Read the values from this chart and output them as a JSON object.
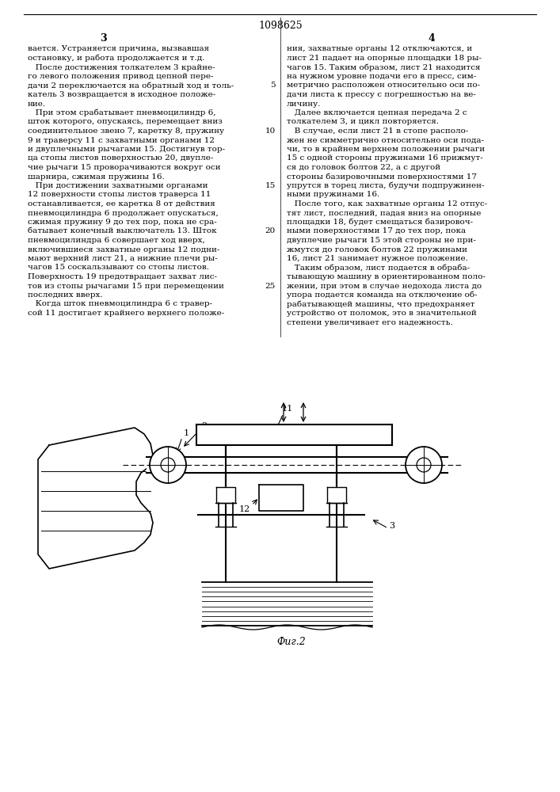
{
  "page_width": 7.07,
  "page_height": 10.0,
  "background_color": "#ffffff",
  "patent_number": "1098625",
  "col_left_number": "3",
  "col_right_number": "4",
  "fig_caption": "Фиг.2",
  "left_texts": [
    "вается. Устраняется причина, вызвавшая",
    "остановку, и работа продолжается и т.д.",
    "   После достижения толкателем 3 крайне-",
    "го левого положения привод цепной пере-",
    "дачи 2 переключается на обратный ход и толь-",
    "катель 3 возвращается в исходное положе-",
    "ние.",
    "   При этом срабатывает пневмоцилиндр 6,",
    "шток которого, опускаясь, перемещает вниз",
    "соединительное звено 7, каретку 8, пружину",
    "9 и траверсу 11 с захватными органами 12",
    "и двуплечными рычагами 15. Достигнув тор-",
    "ца стопы листов поверхностью 20, двупле-",
    "чие рычаги 15 проворачиваются вокруг оси",
    "шарнира, сжимая пружины 16.",
    "   При достижении захватными органами",
    "12 поверхности стопы листов траверса 11",
    "останавливается, ее каретка 8 от действия",
    "пневмоцилиндра 6 продолжает опускаться,",
    "сжимая пружину 9 до тех пор, пока не сра-",
    "батывает конечный выключатель 13. Шток",
    "пневмоцилиндра 6 совершает ход вверх,",
    "включившиеся захватные органы 12 подни-",
    "мают верхний лист 21, а нижние плечи ры-",
    "чагов 15 соскальзывают со стопы листов.",
    "Поверхность 19 предотвращает захват лис-",
    "тов из стопы рычагами 15 при перемещении",
    "последних вверх.",
    "   Когда шток пневмоцилиндра 6 с травер-",
    "сой 11 достигает крайнего верхнего положе-"
  ],
  "right_texts": [
    "ния, захватные органы 12 отключаются, и",
    "лист 21 падает на опорные площадки 18 ры-",
    "чагов 15. Таким образом, лист 21 находится",
    "на нужном уровне подачи его в пресс, сим-",
    "метрично расположен относительно оси по-",
    "дачи листа к прессу с погрешностью на ве-",
    "личину.",
    "   Далее включается цепная передача 2 с",
    "толкателем 3, и цикл повторяется.",
    "   В случае, если лист 21 в стопе располо-",
    "жен не симметрично относительно оси пода-",
    "чи, то в крайнем верхнем положении рычаги",
    "15 с одной стороны пружинами 16 прижмут-",
    "ся до головок болтов 22, а с другой",
    "стороны базировочными поверхностями 17",
    "упрутся в торец листа, будучи подпружинен-",
    "ными пружинами 16.",
    "   После того, как захватные органы 12 отпус-",
    "тят лист, последний, падая вниз на опорные",
    "площадки 18, будет смещаться базировоч-",
    "ными поверхностями 17 до тех пор, пока",
    "двуплечие рычаги 15 этой стороны не при-",
    "жмутся до головок болтов 22 пружинами",
    "16, лист 21 занимает нужное положение.",
    "   Таким образом, лист подается в обраба-",
    "тывающую машину в ориентированном поло-",
    "жении, при этом в случае недохода листа до",
    "упора подается команда на отключение об-",
    "рабатывающей машины, что предохраняет",
    "устройство от поломок, это в значительной",
    "степени увеличивает его надежность."
  ],
  "line_number_rows": {
    "5": 4,
    "10": 9,
    "15": 15,
    "20": 20,
    "25": 26
  }
}
